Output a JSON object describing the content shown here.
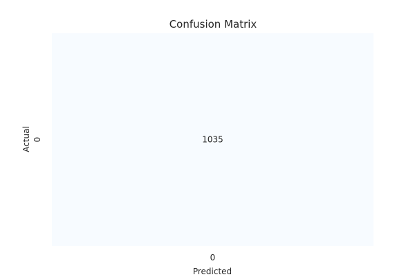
{
  "chart_data": {
    "type": "heatmap",
    "title": "Confusion Matrix",
    "xlabel": "Predicted",
    "ylabel": "Actual",
    "x_categories": [
      "0"
    ],
    "y_categories": [
      "0"
    ],
    "values": [
      [
        1035
      ]
    ],
    "colorbar": false,
    "cell_color": "#f7fbff",
    "text_color": "#262626"
  }
}
